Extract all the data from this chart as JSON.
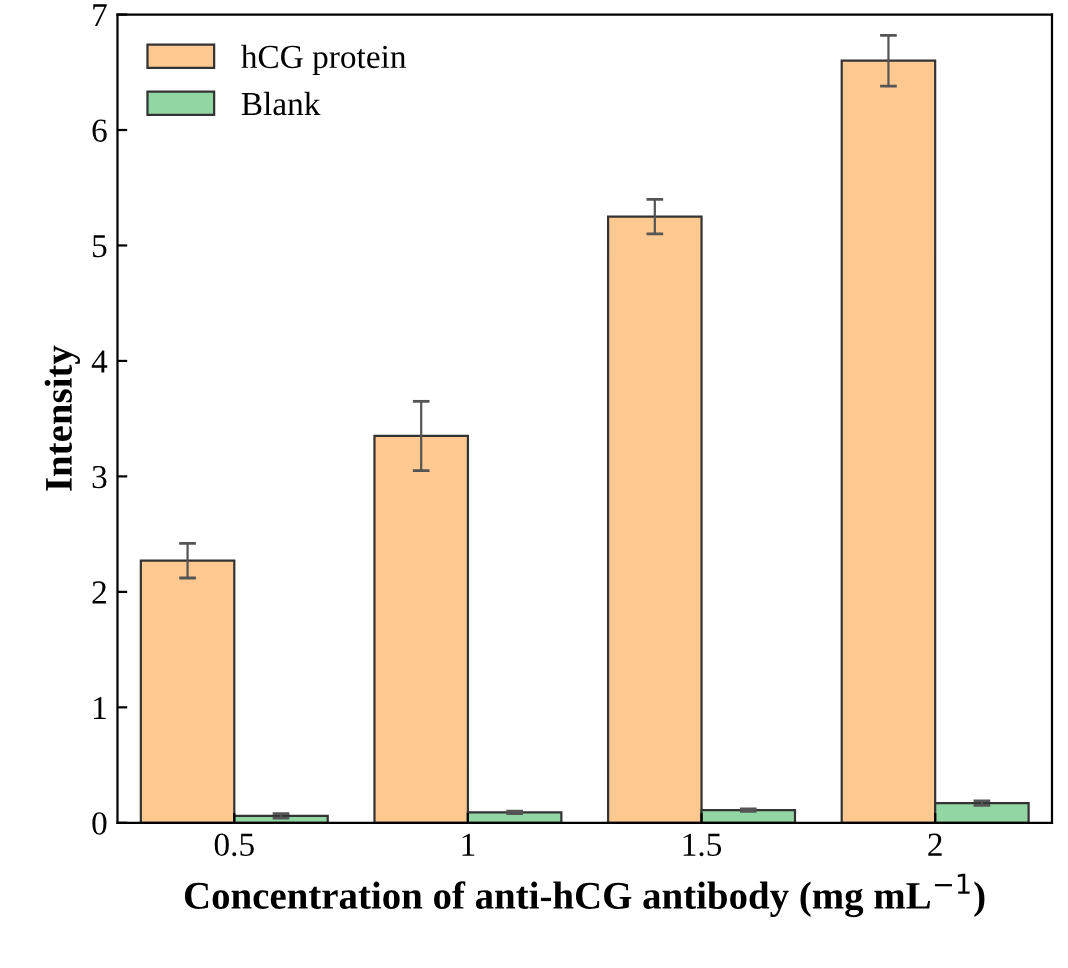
{
  "chart_data": {
    "type": "bar",
    "xlabel": "Concentration of anti-hCG antibody (mg mL$^{−1}$)",
    "ylabel": "Intensity",
    "categories": [
      "0.5",
      "1",
      "1.5",
      "2"
    ],
    "series": [
      {
        "name": "hCG protein",
        "color": "#fdc991",
        "values": [
          2.27,
          3.35,
          5.25,
          6.6
        ],
        "errors": [
          0.15,
          0.3,
          0.15,
          0.22
        ]
      },
      {
        "name": "Blank",
        "color": "#92d6a3",
        "values": [
          0.06,
          0.09,
          0.11,
          0.17
        ],
        "errors": [
          0.02,
          0.01,
          0.01,
          0.02
        ]
      }
    ],
    "ylim": [
      0,
      7
    ],
    "yticks": [
      0,
      1,
      2,
      3,
      4,
      5,
      6,
      7
    ],
    "legend": "top left",
    "grid": false
  }
}
